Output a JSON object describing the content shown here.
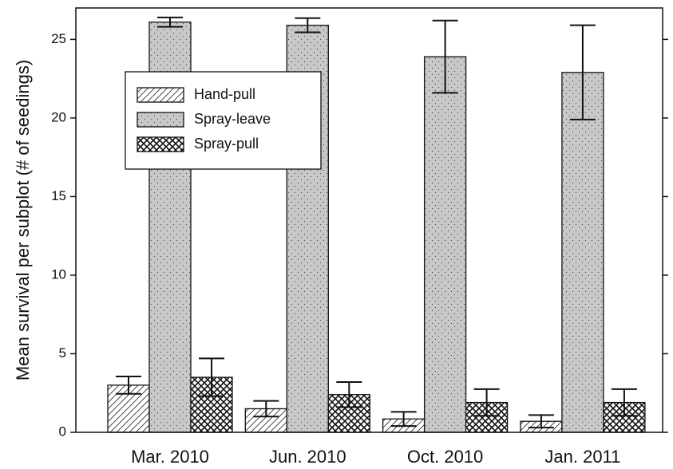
{
  "chart_data": {
    "type": "bar",
    "ylabel": "Mean survival per subplot (# of seedings)",
    "categories": [
      "Mar. 2010",
      "Jun. 2010",
      "Oct. 2010",
      "Jan. 2011"
    ],
    "series": [
      {
        "name": "Hand-pull",
        "color": "#ffffff",
        "pattern": "diagonal",
        "values": [
          3.0,
          1.5,
          0.85,
          0.7
        ],
        "errors": [
          0.55,
          0.5,
          0.45,
          0.4
        ]
      },
      {
        "name": "Spray-leave",
        "color": "#c8c8c8",
        "pattern": "dots",
        "values": [
          26.1,
          25.9,
          23.9,
          22.9
        ],
        "errors": [
          0.3,
          0.45,
          2.3,
          3.0
        ]
      },
      {
        "name": "Spray-pull",
        "color": "#ffffff",
        "pattern": "crosshatch",
        "values": [
          3.5,
          2.4,
          1.9,
          1.9
        ],
        "errors": [
          1.2,
          0.8,
          0.85,
          0.85
        ]
      }
    ],
    "ylim": [
      0,
      27
    ],
    "yticks": [
      0,
      5,
      10,
      15,
      20,
      25
    ],
    "legend": "upper left"
  }
}
